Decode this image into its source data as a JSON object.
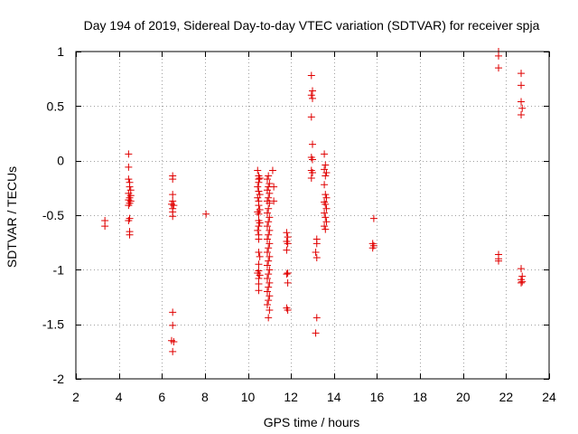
{
  "chart_data": {
    "type": "scatter",
    "title": "Day 194 of 2019, Sidereal Day-to-day VTEC variation (SDTVAR) for receiver spja",
    "xlabel": "GPS time / hours",
    "ylabel": "SDTVAR / TECUs",
    "xlim": [
      2,
      24
    ],
    "ylim": [
      -2,
      1
    ],
    "xticks": [
      2,
      4,
      6,
      8,
      10,
      12,
      14,
      16,
      18,
      20,
      22,
      24
    ],
    "yticks": [
      -2,
      -1.5,
      -1,
      -0.5,
      0,
      0.5,
      1
    ],
    "ytick_labels": [
      "-2",
      "-1.5",
      "-1",
      "-0.5",
      "0",
      "0.5",
      "1"
    ],
    "grid": true,
    "marker": "+",
    "color": "#e00000",
    "series": [
      {
        "name": "SDTVAR",
        "points": [
          [
            3.35,
            -0.55
          ],
          [
            3.35,
            -0.6
          ],
          [
            4.45,
            0.06
          ],
          [
            4.45,
            -0.06
          ],
          [
            4.45,
            -0.17
          ],
          [
            4.5,
            -0.2
          ],
          [
            4.5,
            -0.24
          ],
          [
            4.55,
            -0.27
          ],
          [
            4.45,
            -0.3
          ],
          [
            4.55,
            -0.32
          ],
          [
            4.5,
            -0.34
          ],
          [
            4.45,
            -0.36
          ],
          [
            4.55,
            -0.37
          ],
          [
            4.5,
            -0.39
          ],
          [
            4.45,
            -0.41
          ],
          [
            4.5,
            -0.53
          ],
          [
            4.45,
            -0.55
          ],
          [
            4.5,
            -0.65
          ],
          [
            4.5,
            -0.68
          ],
          [
            6.5,
            -0.14
          ],
          [
            6.5,
            -0.17
          ],
          [
            6.5,
            -0.31
          ],
          [
            6.5,
            -0.37
          ],
          [
            6.45,
            -0.4
          ],
          [
            6.55,
            -0.41
          ],
          [
            6.5,
            -0.44
          ],
          [
            6.5,
            -0.47
          ],
          [
            6.5,
            -0.51
          ],
          [
            6.5,
            -1.39
          ],
          [
            6.5,
            -1.51
          ],
          [
            6.45,
            -1.65
          ],
          [
            6.55,
            -1.66
          ],
          [
            6.5,
            -1.75
          ],
          [
            8.05,
            -0.49
          ],
          [
            10.45,
            -0.09
          ],
          [
            10.5,
            -0.14
          ],
          [
            10.55,
            -0.16
          ],
          [
            10.5,
            -0.17
          ],
          [
            10.5,
            -0.2
          ],
          [
            10.45,
            -0.24
          ],
          [
            10.5,
            -0.28
          ],
          [
            10.55,
            -0.31
          ],
          [
            10.45,
            -0.34
          ],
          [
            10.5,
            -0.37
          ],
          [
            10.5,
            -0.41
          ],
          [
            10.55,
            -0.45
          ],
          [
            10.45,
            -0.47
          ],
          [
            10.5,
            -0.49
          ],
          [
            10.5,
            -0.55
          ],
          [
            10.55,
            -0.57
          ],
          [
            10.5,
            -0.6
          ],
          [
            10.45,
            -0.64
          ],
          [
            10.5,
            -0.68
          ],
          [
            10.5,
            -0.72
          ],
          [
            10.5,
            -0.84
          ],
          [
            10.55,
            -0.88
          ],
          [
            10.5,
            -0.95
          ],
          [
            10.5,
            -1.01
          ],
          [
            10.45,
            -1.03
          ],
          [
            10.55,
            -1.05
          ],
          [
            10.5,
            -1.08
          ],
          [
            10.5,
            -1.13
          ],
          [
            10.5,
            -1.19
          ],
          [
            10.95,
            -0.14
          ],
          [
            10.9,
            -0.17
          ],
          [
            11.0,
            -0.21
          ],
          [
            10.95,
            -0.24
          ],
          [
            10.9,
            -0.27
          ],
          [
            11.0,
            -0.3
          ],
          [
            10.95,
            -0.34
          ],
          [
            10.9,
            -0.37
          ],
          [
            11.0,
            -0.39
          ],
          [
            10.95,
            -0.44
          ],
          [
            10.9,
            -0.48
          ],
          [
            11.0,
            -0.52
          ],
          [
            10.95,
            -0.56
          ],
          [
            10.9,
            -0.6
          ],
          [
            11.0,
            -0.64
          ],
          [
            10.95,
            -0.68
          ],
          [
            10.9,
            -0.72
          ],
          [
            11.0,
            -0.76
          ],
          [
            10.95,
            -0.8
          ],
          [
            10.9,
            -0.84
          ],
          [
            11.0,
            -0.88
          ],
          [
            10.95,
            -0.92
          ],
          [
            10.9,
            -0.96
          ],
          [
            11.0,
            -1.0
          ],
          [
            10.95,
            -1.04
          ],
          [
            10.9,
            -1.08
          ],
          [
            11.0,
            -1.12
          ],
          [
            10.95,
            -1.16
          ],
          [
            10.9,
            -1.2
          ],
          [
            11.0,
            -1.24
          ],
          [
            10.95,
            -1.28
          ],
          [
            10.9,
            -1.32
          ],
          [
            11.0,
            -1.37
          ],
          [
            10.95,
            -1.44
          ],
          [
            11.15,
            -0.09
          ],
          [
            11.2,
            -0.24
          ],
          [
            11.2,
            -0.37
          ],
          [
            11.8,
            -0.66
          ],
          [
            11.85,
            -0.7
          ],
          [
            11.8,
            -0.74
          ],
          [
            11.85,
            -0.76
          ],
          [
            11.8,
            -0.82
          ],
          [
            11.85,
            -1.03
          ],
          [
            11.8,
            -1.04
          ],
          [
            11.85,
            -1.12
          ],
          [
            11.8,
            -1.35
          ],
          [
            11.85,
            -1.37
          ],
          [
            12.95,
            0.78
          ],
          [
            13.0,
            0.64
          ],
          [
            12.95,
            0.6
          ],
          [
            13.0,
            0.57
          ],
          [
            12.95,
            0.4
          ],
          [
            13.0,
            0.15
          ],
          [
            12.95,
            0.03
          ],
          [
            13.0,
            0.01
          ],
          [
            12.95,
            -0.09
          ],
          [
            13.0,
            -0.11
          ],
          [
            12.95,
            -0.16
          ],
          [
            13.2,
            -0.72
          ],
          [
            13.2,
            -0.76
          ],
          [
            13.15,
            -0.84
          ],
          [
            13.2,
            -0.89
          ],
          [
            13.2,
            -1.44
          ],
          [
            13.15,
            -1.58
          ],
          [
            13.55,
            0.06
          ],
          [
            13.6,
            -0.04
          ],
          [
            13.55,
            -0.08
          ],
          [
            13.65,
            -0.11
          ],
          [
            13.6,
            -0.14
          ],
          [
            13.55,
            -0.22
          ],
          [
            13.6,
            -0.31
          ],
          [
            13.65,
            -0.34
          ],
          [
            13.55,
            -0.38
          ],
          [
            13.6,
            -0.4
          ],
          [
            13.65,
            -0.44
          ],
          [
            13.55,
            -0.48
          ],
          [
            13.6,
            -0.52
          ],
          [
            13.65,
            -0.56
          ],
          [
            13.55,
            -0.6
          ],
          [
            13.6,
            -0.63
          ],
          [
            15.85,
            -0.53
          ],
          [
            15.8,
            -0.76
          ],
          [
            15.85,
            -0.78
          ],
          [
            15.8,
            -0.8
          ],
          [
            21.65,
            1.0
          ],
          [
            21.65,
            0.96
          ],
          [
            21.65,
            0.85
          ],
          [
            21.65,
            -0.86
          ],
          [
            21.65,
            -0.9
          ],
          [
            21.65,
            -0.92
          ],
          [
            22.7,
            0.8
          ],
          [
            22.7,
            0.69
          ],
          [
            22.7,
            0.54
          ],
          [
            22.75,
            0.48
          ],
          [
            22.7,
            0.42
          ],
          [
            22.7,
            -0.99
          ],
          [
            22.75,
            -1.06
          ],
          [
            22.7,
            -1.09
          ],
          [
            22.75,
            -1.11
          ],
          [
            22.7,
            -1.12
          ]
        ]
      }
    ]
  }
}
